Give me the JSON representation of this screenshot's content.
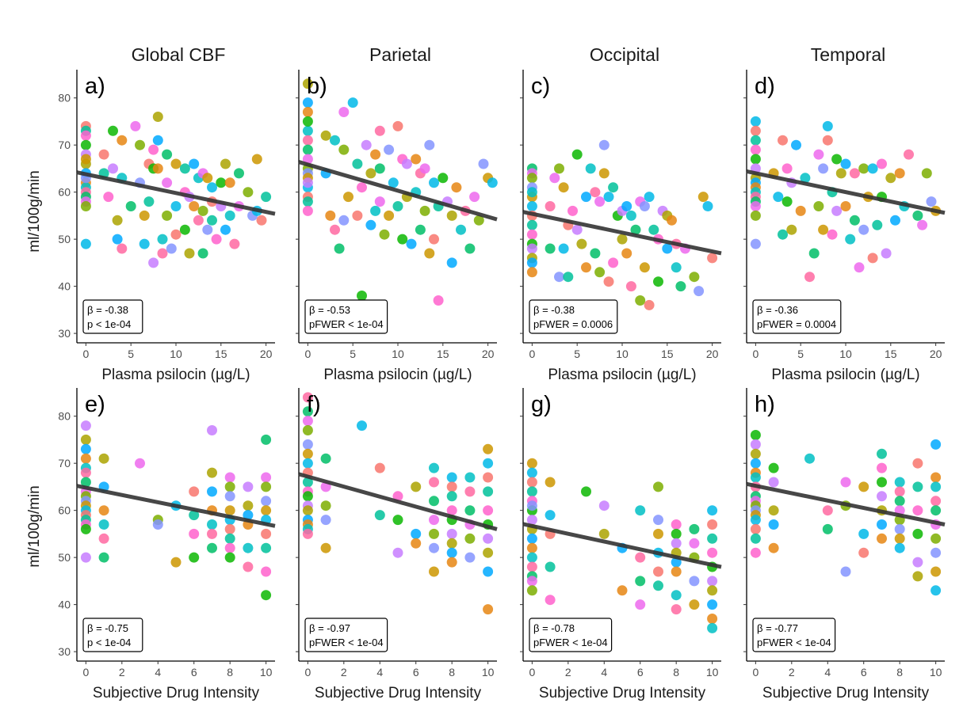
{
  "figure": {
    "column_titles": [
      "Global CBF",
      "Parietal",
      "Occipital",
      "Temporal"
    ],
    "ylabel": "ml/100g/min",
    "xlabel_top": "Plasma psilocin (µg/L)",
    "xlabel_bottom": "Subjective Drug Intensity",
    "palette": [
      "#F8766D",
      "#E68613",
      "#CD9600",
      "#ABA300",
      "#7CAE00",
      "#0CB702",
      "#00BE67",
      "#00C19A",
      "#00BFC4",
      "#00B8E7",
      "#00A9FF",
      "#8494FF",
      "#C77CFF",
      "#ED68ED",
      "#FF61CC",
      "#FF68A1"
    ],
    "line_color": "#333333"
  },
  "chart_data": [
    {
      "type": "scatter",
      "panel": "a)",
      "title": "Global CBF",
      "xlabel": "Plasma psilocin (µg/L)",
      "ylabel": "ml/100g/min",
      "xlim": [
        -1,
        21
      ],
      "ylim": [
        28,
        86
      ],
      "xticks": [
        0,
        5,
        10,
        15,
        20
      ],
      "yticks": [
        30,
        40,
        50,
        60,
        70,
        80
      ],
      "fit": {
        "x": [
          -1,
          21
        ],
        "y": [
          64.2,
          55.4
        ]
      },
      "annotation": [
        "β = -0.38",
        "p < 1e-04"
      ],
      "x": [
        0,
        0,
        0,
        0,
        0,
        0,
        0,
        0,
        0,
        0,
        0,
        0,
        0,
        0,
        0,
        0,
        2,
        2,
        2.5,
        3,
        3,
        3.5,
        3.5,
        4,
        4,
        4,
        5,
        5.5,
        6,
        6,
        6.5,
        6.5,
        7,
        7,
        7.5,
        7.5,
        7.5,
        8,
        8,
        8,
        8.5,
        8.5,
        9,
        9,
        9,
        9.5,
        10,
        10,
        10,
        11,
        11,
        11,
        11.5,
        11.5,
        12,
        12,
        12.5,
        12.5,
        13,
        13,
        13,
        13.5,
        13.5,
        14,
        14,
        14,
        14.5,
        15,
        15,
        15.5,
        15.5,
        16,
        16,
        16.5,
        17,
        17,
        18,
        18.5,
        19,
        19,
        19.5,
        20
      ],
      "y": [
        74,
        73,
        72,
        70,
        68,
        66,
        64,
        62,
        61,
        60,
        59,
        58,
        57,
        63,
        67,
        49,
        68,
        64,
        59,
        73,
        65,
        54,
        50,
        71,
        63,
        48,
        57,
        74,
        70,
        62,
        55,
        49,
        66,
        58,
        69,
        65,
        45,
        76,
        71,
        65,
        50,
        47,
        68,
        62,
        55,
        48,
        66,
        57,
        51,
        65,
        60,
        52,
        59,
        47,
        66,
        57,
        63,
        54,
        47,
        64,
        56,
        52,
        63,
        61,
        58,
        54,
        50,
        62,
        57,
        66,
        52,
        62,
        55,
        49,
        64,
        57,
        60,
        55,
        67,
        56,
        54,
        59
      ]
    },
    {
      "type": "scatter",
      "panel": "b)",
      "title": "Parietal",
      "xlabel": "Plasma psilocin (µg/L)",
      "ylabel": "ml/100g/min",
      "xlim": [
        -1,
        21
      ],
      "ylim": [
        28,
        86
      ],
      "xticks": [
        0,
        5,
        10,
        15,
        20
      ],
      "yticks": [
        30,
        40,
        50,
        60,
        70,
        80
      ],
      "fit": {
        "x": [
          -1,
          21
        ],
        "y": [
          66.4,
          54.2
        ]
      },
      "annotation": [
        "β = -0.53",
        "pFWER < 1e-04"
      ],
      "x": [
        0,
        0,
        0,
        0,
        0,
        0,
        0,
        0,
        0,
        0,
        0,
        0,
        0,
        0,
        0,
        0,
        2,
        2,
        2.5,
        3,
        3,
        3.5,
        4,
        4,
        4,
        4.5,
        5,
        5.5,
        5.5,
        6,
        6,
        6.5,
        7,
        7,
        7.5,
        7.5,
        8,
        8,
        8,
        8.5,
        9,
        9,
        9.5,
        10,
        10,
        10.5,
        10.5,
        11,
        11,
        11.5,
        12,
        12,
        12.5,
        12.5,
        13,
        13,
        13.5,
        13.5,
        14,
        14,
        14.5,
        14.5,
        15,
        15.5,
        16,
        16,
        16.5,
        17,
        17.5,
        18,
        18.5,
        19,
        19.5,
        20,
        20.5
      ],
      "y": [
        83,
        79,
        77,
        73,
        71,
        69,
        67,
        65,
        64,
        63,
        61,
        59,
        58,
        56,
        75,
        62,
        72,
        64,
        55,
        71,
        52,
        48,
        77,
        69,
        54,
        59,
        79,
        55,
        66,
        61,
        38,
        70,
        64,
        53,
        68,
        56,
        73,
        65,
        58,
        51,
        69,
        55,
        62,
        74,
        57,
        67,
        50,
        66,
        59,
        49,
        67,
        60,
        64,
        52,
        65,
        56,
        70,
        47,
        62,
        50,
        57,
        37,
        63,
        58,
        55,
        45,
        61,
        52,
        56,
        48,
        59,
        54,
        66,
        63,
        62
      ]
    },
    {
      "type": "scatter",
      "panel": "c)",
      "title": "Occipital",
      "xlabel": "Plasma psilocin (µg/L)",
      "ylabel": "ml/100g/min",
      "xlim": [
        -1,
        21
      ],
      "ylim": [
        28,
        86
      ],
      "xticks": [
        0,
        5,
        10,
        15,
        20
      ],
      "yticks": [
        30,
        40,
        50,
        60,
        70,
        80
      ],
      "fit": {
        "x": [
          -1,
          21
        ],
        "y": [
          55.8,
          47.0
        ]
      },
      "annotation": [
        "β = -0.38",
        "pFWER = 0.0006"
      ],
      "x": [
        0,
        0,
        0,
        0,
        0,
        0,
        0,
        0,
        0,
        0,
        0,
        0,
        0,
        0,
        0,
        2,
        2,
        2.5,
        3,
        3,
        3.5,
        3.5,
        4,
        4,
        4.5,
        5,
        5,
        5.5,
        6,
        6,
        6.5,
        7,
        7,
        7.5,
        7.5,
        8,
        8,
        8.5,
        8.5,
        9,
        9,
        9.5,
        10,
        10,
        10.5,
        10.5,
        11,
        11,
        11.5,
        12,
        12,
        12.5,
        12.5,
        13,
        13,
        13.5,
        14,
        14,
        14.5,
        15,
        15,
        15.5,
        16,
        16,
        16.5,
        17,
        18,
        18.5,
        19,
        19.5,
        20
      ],
      "y": [
        65,
        64,
        63,
        61,
        59,
        57,
        55,
        53,
        51,
        49,
        48,
        46,
        45,
        43,
        60,
        57,
        48,
        63,
        65,
        42,
        61,
        48,
        53,
        42,
        56,
        68,
        52,
        49,
        59,
        44,
        65,
        60,
        47,
        58,
        43,
        70,
        64,
        59,
        41,
        61,
        45,
        55,
        56,
        50,
        57,
        47,
        55,
        40,
        52,
        58,
        37,
        57,
        44,
        59,
        36,
        52,
        50,
        41,
        56,
        55,
        48,
        54,
        44,
        49,
        40,
        48,
        42,
        39,
        59,
        57,
        46
      ]
    },
    {
      "type": "scatter",
      "panel": "d)",
      "title": "Temporal",
      "xlabel": "Plasma psilocin (µg/L)",
      "ylabel": "ml/100g/min",
      "xlim": [
        -1,
        21
      ],
      "ylim": [
        28,
        86
      ],
      "xticks": [
        0,
        5,
        10,
        15,
        20
      ],
      "yticks": [
        30,
        40,
        50,
        60,
        70,
        80
      ],
      "fit": {
        "x": [
          -1,
          21
        ],
        "y": [
          64.4,
          55.6
        ]
      },
      "annotation": [
        "β = -0.36",
        "pFWER = 0.0004"
      ],
      "x": [
        0,
        0,
        0,
        0,
        0,
        0,
        0,
        0,
        0,
        0,
        0,
        0,
        0,
        0,
        0,
        2,
        2.5,
        3,
        3,
        3.5,
        3.5,
        4,
        4,
        4.5,
        5,
        5.5,
        6,
        6.5,
        7,
        7,
        7.5,
        7.5,
        8,
        8,
        8.5,
        8.5,
        9,
        9,
        9.5,
        10,
        10,
        10.5,
        11,
        11,
        11.5,
        12,
        12,
        12.5,
        13,
        13,
        13.5,
        14,
        14,
        14.5,
        15,
        15.5,
        16,
        16.5,
        17,
        18,
        18.5,
        19,
        19.5,
        20
      ],
      "y": [
        75,
        73,
        71,
        69,
        67,
        65,
        63,
        62,
        61,
        60,
        59,
        58,
        57,
        55,
        49,
        64,
        59,
        71,
        51,
        65,
        58,
        62,
        52,
        70,
        56,
        63,
        42,
        47,
        68,
        57,
        65,
        52,
        74,
        71,
        60,
        51,
        67,
        56,
        64,
        66,
        57,
        50,
        64,
        54,
        44,
        65,
        52,
        59,
        65,
        46,
        53,
        66,
        59,
        47,
        63,
        54,
        64,
        57,
        68,
        55,
        53,
        64,
        58,
        56
      ]
    },
    {
      "type": "scatter",
      "panel": "e)",
      "title": "",
      "xlabel": "Subjective Drug Intensity",
      "ylabel": "ml/100g/min",
      "xlim": [
        -0.5,
        10.5
      ],
      "ylim": [
        28,
        86
      ],
      "xticks": [
        0,
        2,
        4,
        6,
        8,
        10
      ],
      "yticks": [
        30,
        40,
        50,
        60,
        70,
        80
      ],
      "fit": {
        "x": [
          -0.5,
          10.5
        ],
        "y": [
          65.2,
          56.7
        ]
      },
      "annotation": [
        "β = -0.75",
        "p < 1e-04"
      ],
      "x": [
        0,
        0,
        0,
        0,
        0,
        0,
        0,
        0,
        0,
        0,
        0,
        0,
        0,
        0,
        0,
        0,
        0,
        1,
        1,
        1,
        1,
        1,
        1,
        3,
        4,
        4,
        5,
        5,
        6,
        6,
        6,
        6,
        7,
        7,
        7,
        7,
        7,
        7,
        7,
        8,
        8,
        8,
        8,
        8,
        8,
        8,
        8,
        8,
        9,
        9,
        9,
        9,
        9,
        9,
        10,
        10,
        10,
        10,
        10,
        10,
        10,
        10,
        10,
        10
      ],
      "y": [
        78,
        75,
        73,
        71,
        69,
        68,
        66,
        64,
        63,
        62,
        61,
        60,
        59,
        58,
        57,
        56,
        50,
        71,
        65,
        60,
        57,
        54,
        50,
        70,
        58,
        57,
        49,
        61,
        64,
        59,
        55,
        50,
        77,
        68,
        64,
        60,
        57,
        55,
        52,
        67,
        65,
        63,
        60,
        58,
        56,
        54,
        52,
        50,
        65,
        61,
        59,
        57,
        52,
        48,
        75,
        67,
        65,
        62,
        60,
        58,
        55,
        52,
        47,
        42
      ]
    },
    {
      "type": "scatter",
      "panel": "f)",
      "title": "",
      "xlabel": "Subjective Drug Intensity",
      "ylabel": "ml/100g/min",
      "xlim": [
        -0.5,
        10.5
      ],
      "ylim": [
        28,
        86
      ],
      "xticks": [
        0,
        2,
        4,
        6,
        8,
        10
      ],
      "yticks": [
        30,
        40,
        50,
        60,
        70,
        80
      ],
      "fit": {
        "x": [
          -0.5,
          10.5
        ],
        "y": [
          67.7,
          56.0
        ]
      },
      "annotation": [
        "β = -0.97",
        "pFWER < 1e-04"
      ],
      "x": [
        0,
        0,
        0,
        0,
        0,
        0,
        0,
        0,
        0,
        0,
        0,
        0,
        0,
        0,
        0,
        0,
        0,
        1,
        1,
        1,
        1,
        1,
        3,
        4,
        4,
        5,
        5,
        5,
        6,
        6,
        6,
        7,
        7,
        7,
        7,
        7,
        7,
        7,
        8,
        8,
        8,
        8,
        8,
        8,
        8,
        8,
        8,
        9,
        9,
        9,
        9,
        9,
        9,
        10,
        10,
        10,
        10,
        10,
        10,
        10,
        10,
        10,
        10
      ],
      "y": [
        84,
        81,
        79,
        77,
        74,
        72,
        70,
        68,
        66,
        64,
        63,
        61,
        60,
        58,
        57,
        56,
        55,
        71,
        65,
        61,
        58,
        52,
        78,
        69,
        59,
        63,
        58,
        51,
        65,
        55,
        53,
        69,
        66,
        62,
        58,
        55,
        52,
        47,
        67,
        65,
        63,
        60,
        58,
        55,
        53,
        51,
        49,
        67,
        64,
        60,
        57,
        54,
        50,
        73,
        70,
        67,
        64,
        60,
        57,
        54,
        51,
        47,
        39
      ]
    },
    {
      "type": "scatter",
      "panel": "g)",
      "title": "",
      "xlabel": "Subjective Drug Intensity",
      "ylabel": "ml/100g/min",
      "xlim": [
        -0.5,
        10.5
      ],
      "ylim": [
        28,
        86
      ],
      "xticks": [
        0,
        2,
        4,
        6,
        8,
        10
      ],
      "yticks": [
        30,
        40,
        50,
        60,
        70,
        80
      ],
      "fit": {
        "x": [
          -0.5,
          10.5
        ],
        "y": [
          57.1,
          48.0
        ]
      },
      "annotation": [
        "β = -0.78",
        "pFWER < 1e-04"
      ],
      "x": [
        0,
        0,
        0,
        0,
        0,
        0,
        0,
        0,
        0,
        0,
        0,
        0,
        0,
        0,
        0,
        0,
        1,
        1,
        1,
        1,
        1,
        3,
        4,
        4,
        5,
        5,
        6,
        6,
        6,
        6,
        7,
        7,
        7,
        7,
        7,
        7,
        8,
        8,
        8,
        8,
        8,
        8,
        8,
        8,
        9,
        9,
        9,
        9,
        9,
        10,
        10,
        10,
        10,
        10,
        10,
        10,
        10,
        10,
        10
      ],
      "y": [
        70,
        68,
        66,
        64,
        62,
        60,
        58,
        56,
        54,
        52,
        50,
        48,
        46,
        45,
        43,
        61,
        66,
        59,
        55,
        48,
        41,
        64,
        61,
        55,
        52,
        43,
        60,
        50,
        45,
        40,
        65,
        58,
        55,
        51,
        47,
        44,
        57,
        55,
        53,
        51,
        49,
        47,
        42,
        39,
        56,
        53,
        50,
        45,
        40,
        60,
        57,
        54,
        51,
        48,
        45,
        43,
        40,
        37,
        35
      ]
    },
    {
      "type": "scatter",
      "panel": "h)",
      "title": "",
      "xlabel": "Subjective Drug Intensity",
      "ylabel": "ml/100g/min",
      "xlim": [
        -0.5,
        10.5
      ],
      "ylim": [
        28,
        86
      ],
      "xticks": [
        0,
        2,
        4,
        6,
        8,
        10
      ],
      "yticks": [
        30,
        40,
        50,
        60,
        70,
        80
      ],
      "fit": {
        "x": [
          -0.5,
          10.5
        ],
        "y": [
          65.6,
          57.0
        ]
      },
      "annotation": [
        "β = -0.77",
        "pFWER < 1e-04"
      ],
      "x": [
        0,
        0,
        0,
        0,
        0,
        0,
        0,
        0,
        0,
        0,
        0,
        0,
        0,
        0,
        0,
        0,
        1,
        1,
        1,
        1,
        1,
        3,
        4,
        4,
        5,
        5,
        5,
        6,
        6,
        6,
        7,
        7,
        7,
        7,
        7,
        7,
        7,
        8,
        8,
        8,
        8,
        8,
        8,
        8,
        8,
        9,
        9,
        9,
        9,
        9,
        9,
        10,
        10,
        10,
        10,
        10,
        10,
        10,
        10,
        10,
        10
      ],
      "y": [
        76,
        74,
        72,
        70,
        68,
        67,
        65,
        63,
        62,
        61,
        60,
        59,
        58,
        56,
        54,
        51,
        69,
        66,
        60,
        57,
        52,
        71,
        60,
        56,
        66,
        61,
        47,
        65,
        55,
        51,
        72,
        69,
        66,
        63,
        60,
        57,
        54,
        66,
        64,
        62,
        60,
        58,
        56,
        54,
        52,
        70,
        65,
        60,
        55,
        49,
        46,
        74,
        67,
        65,
        62,
        60,
        57,
        54,
        51,
        47,
        43
      ]
    }
  ]
}
